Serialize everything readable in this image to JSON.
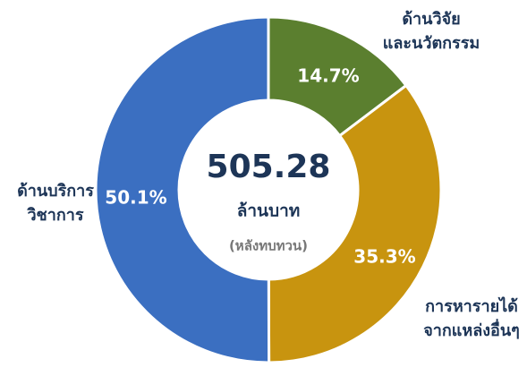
{
  "chart_data": {
    "type": "pie",
    "categories": [
      [
        "ด้านวิจัย",
        "และนวัตกรรม"
      ],
      [
        "การหารายได้",
        "จากแหล่งอื่นๆ"
      ],
      [
        "ด้านบริการ",
        "วิชาการ"
      ]
    ],
    "values": [
      14.7,
      35.3,
      50.1
    ],
    "value_labels": [
      "14.7%",
      "35.3%",
      "50.1%"
    ],
    "colors": [
      "#5b7f2f",
      "#c8940f",
      "#3b6fc1"
    ],
    "total": 505.28,
    "total_unit": "ล้านบาท",
    "total_note": "(หลังทบทวน)"
  }
}
